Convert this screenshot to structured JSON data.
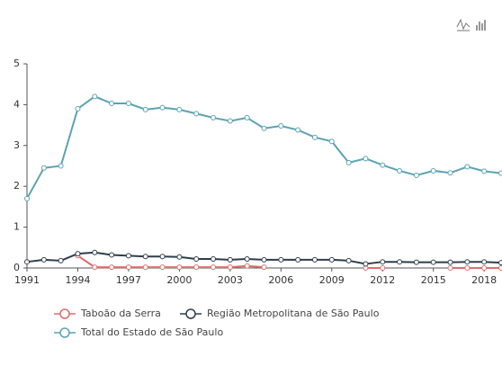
{
  "chart_data": {
    "type": "line",
    "x": [
      1991,
      1992,
      1993,
      1994,
      1995,
      1996,
      1997,
      1998,
      1999,
      2000,
      2001,
      2002,
      2003,
      2004,
      2005,
      2006,
      2007,
      2008,
      2009,
      2010,
      2011,
      2012,
      2013,
      2014,
      2015,
      2016,
      2017,
      2018,
      2019
    ],
    "xlim": [
      1991,
      2019
    ],
    "xticks": [
      1991,
      1994,
      1997,
      2000,
      2003,
      2006,
      2009,
      2012,
      2015,
      2018
    ],
    "ylim": [
      0,
      5
    ],
    "yticks": [
      0,
      1,
      2,
      3,
      4,
      5
    ],
    "grid": false,
    "legend": "bottom",
    "series": [
      {
        "name": "Taboão da Serra",
        "color": "#e06c6c",
        "values": [
          null,
          null,
          null,
          0.3,
          0.02,
          0.02,
          0.02,
          0.02,
          0.02,
          0.02,
          0.02,
          0.02,
          0.02,
          0.05,
          0.02,
          null,
          null,
          null,
          null,
          null,
          0,
          0,
          null,
          null,
          null,
          0,
          0,
          0,
          0
        ]
      },
      {
        "name": "Região Metropolitana de São Paulo",
        "color": "#2f3e4e",
        "values": [
          0.15,
          0.2,
          0.18,
          0.35,
          0.38,
          0.32,
          0.3,
          0.28,
          0.28,
          0.27,
          0.22,
          0.22,
          0.2,
          0.22,
          0.2,
          0.2,
          0.2,
          0.2,
          0.2,
          0.18,
          0.1,
          0.15,
          0.15,
          0.14,
          0.14,
          0.14,
          0.15,
          0.15,
          0.13
        ]
      },
      {
        "name": "Total do Estado de São Paulo",
        "color": "#5ba3b4",
        "values": [
          1.7,
          2.45,
          2.5,
          3.9,
          4.2,
          4.03,
          4.03,
          3.88,
          3.93,
          3.88,
          3.78,
          3.68,
          3.6,
          3.68,
          3.42,
          3.48,
          3.38,
          3.2,
          3.1,
          2.58,
          2.68,
          2.52,
          2.38,
          2.27,
          2.38,
          2.33,
          2.48,
          2.37,
          2.32
        ]
      }
    ]
  }
}
